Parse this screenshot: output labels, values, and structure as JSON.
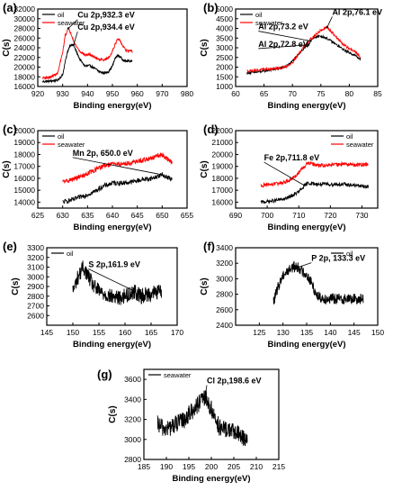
{
  "colors": {
    "oil": "#000000",
    "seawater": "#ff0000",
    "axis": "#000000"
  },
  "chart_data": [
    {
      "id": "a",
      "panel_label": "(a)",
      "type": "line",
      "xlabel": "Binding energy(eV)",
      "ylabel": "C(s)",
      "xlim": [
        920,
        980
      ],
      "ylim": [
        16000,
        32000
      ],
      "xticks": [
        920,
        930,
        940,
        950,
        960,
        970,
        980
      ],
      "yticks": [
        16000,
        18000,
        20000,
        22000,
        24000,
        26000,
        28000,
        30000,
        32000
      ],
      "legend": [
        "oil",
        "seawater"
      ],
      "legend_position": "top-left",
      "series": [
        {
          "name": "oil",
          "color": "#000000",
          "noise": 250,
          "x": [
            922,
            925,
            928,
            930,
            931,
            932,
            933,
            934.4,
            935.5,
            937,
            939,
            941,
            943,
            945,
            947,
            948.5,
            950,
            951,
            952,
            953,
            954,
            955,
            956,
            958
          ],
          "y": [
            17000,
            17100,
            17300,
            18400,
            21000,
            23200,
            24600,
            24500,
            23200,
            21500,
            20200,
            20300,
            19700,
            19000,
            18800,
            19100,
            20200,
            21700,
            22400,
            22200,
            21600,
            21300,
            21200,
            21300
          ]
        },
        {
          "name": "seawater",
          "color": "#ff0000",
          "noise": 250,
          "x": [
            922,
            925,
            928,
            930,
            931,
            932.3,
            933.5,
            935,
            937,
            939,
            941,
            943,
            945,
            947,
            949,
            950.5,
            952,
            953,
            954,
            955,
            956,
            957,
            958
          ],
          "y": [
            17800,
            17900,
            18700,
            23000,
            26500,
            28000,
            26800,
            24700,
            23200,
            22500,
            22600,
            22000,
            21600,
            21500,
            22200,
            24000,
            25700,
            25500,
            24600,
            23700,
            23300,
            23300,
            23200
          ]
        }
      ],
      "annotations": [
        {
          "text": "Cu 2p,932.3 eV",
          "x": 932.3,
          "y": 28000
        },
        {
          "text": "Cu 2p,934.4 eV",
          "x": 934.4,
          "y": 24600
        }
      ]
    },
    {
      "id": "b",
      "panel_label": "(b)",
      "type": "line",
      "xlabel": "Binding energy(eV)",
      "ylabel": "C(s)",
      "xlim": [
        60,
        85
      ],
      "ylim": [
        1000,
        5000
      ],
      "xticks": [
        60,
        65,
        70,
        75,
        80,
        85
      ],
      "yticks": [
        1000,
        1500,
        2000,
        2500,
        3000,
        3500,
        4000,
        4500,
        5000
      ],
      "legend": [
        "oil",
        "seawater"
      ],
      "legend_position": "top-left",
      "series": [
        {
          "name": "oil",
          "color": "#000000",
          "noise": 60,
          "x": [
            62,
            64,
            66,
            68,
            69,
            70,
            71,
            72,
            72.8,
            73.2,
            74,
            75,
            76,
            77,
            78,
            79,
            80,
            81,
            82
          ],
          "y": [
            1700,
            1750,
            1850,
            1950,
            2050,
            2300,
            2650,
            2950,
            3150,
            3350,
            3550,
            3600,
            3500,
            3300,
            3100,
            2900,
            2750,
            2600,
            2400
          ]
        },
        {
          "name": "seawater",
          "color": "#ff0000",
          "noise": 70,
          "x": [
            62,
            64,
            66,
            68,
            69,
            70,
            71,
            72,
            73,
            74,
            75,
            76.1,
            77,
            78,
            79,
            80,
            81,
            82
          ],
          "y": [
            1800,
            1850,
            1900,
            1950,
            2050,
            2250,
            2650,
            3050,
            3400,
            3650,
            3900,
            4050,
            3800,
            3450,
            3150,
            2950,
            2800,
            2500
          ]
        }
      ],
      "annotations": [
        {
          "text": "Al 2p,76.1 eV",
          "x": 76.1,
          "y": 4050
        },
        {
          "text": "Al 2p,73.2 eV",
          "x": 73.2,
          "y": 3350
        },
        {
          "text": "Al 2p,72.8 eV",
          "x": 72.8,
          "y": 3150
        }
      ]
    },
    {
      "id": "c",
      "panel_label": "(c)",
      "type": "line",
      "xlabel": "Binding energy(eV)",
      "ylabel": "C(s)",
      "xlim": [
        625,
        655
      ],
      "ylim": [
        13500,
        20000
      ],
      "xticks": [
        625,
        630,
        635,
        640,
        645,
        650,
        655
      ],
      "yticks": [
        14000,
        15000,
        16000,
        17000,
        18000,
        19000,
        20000
      ],
      "legend": [
        "oil",
        "seawater"
      ],
      "legend_position": "top-left",
      "series": [
        {
          "name": "oil",
          "color": "#000000",
          "noise": 200,
          "x": [
            630,
            632,
            634,
            636,
            638,
            640,
            642,
            644,
            646,
            648,
            650,
            652
          ],
          "y": [
            14000,
            14200,
            14500,
            14800,
            15300,
            15600,
            15600,
            15700,
            15900,
            16000,
            16300,
            15900
          ]
        },
        {
          "name": "seawater",
          "color": "#ff0000",
          "noise": 200,
          "x": [
            630,
            632,
            634,
            636,
            638,
            640,
            642,
            644,
            646,
            648,
            650,
            652
          ],
          "y": [
            15700,
            15900,
            16200,
            16600,
            17000,
            17200,
            17200,
            17300,
            17500,
            17700,
            18000,
            17300
          ]
        }
      ],
      "annotations": [
        {
          "text": "Mn 2p, 650.0 eV",
          "x": 650,
          "y": 16300
        }
      ]
    },
    {
      "id": "d",
      "panel_label": "(d)",
      "type": "line",
      "xlabel": "Binding energy(eV)",
      "ylabel": "C(s)",
      "xlim": [
        690,
        735
      ],
      "ylim": [
        15500,
        22000
      ],
      "xticks": [
        690,
        700,
        710,
        720,
        730
      ],
      "yticks": [
        16000,
        17000,
        18000,
        19000,
        20000,
        21000,
        22000
      ],
      "legend": [
        "oil",
        "seawater"
      ],
      "legend_position": "top-right",
      "series": [
        {
          "name": "oil",
          "color": "#000000",
          "noise": 150,
          "x": [
            698,
            702,
            706,
            709,
            711,
            711.8,
            713,
            716,
            720,
            724,
            728,
            732
          ],
          "y": [
            16000,
            16100,
            16300,
            16700,
            17100,
            17400,
            17600,
            17500,
            17500,
            17500,
            17400,
            17300
          ]
        },
        {
          "name": "seawater",
          "color": "#ff0000",
          "noise": 160,
          "x": [
            698,
            702,
            706,
            709,
            711,
            713,
            716,
            720,
            724,
            728,
            732
          ],
          "y": [
            17400,
            17500,
            17700,
            18200,
            18800,
            19300,
            19100,
            19100,
            19200,
            19100,
            19200
          ]
        }
      ],
      "annotations": [
        {
          "text": "Fe 2p,711.8 eV",
          "x": 711.8,
          "y": 17400
        }
      ]
    },
    {
      "id": "e",
      "panel_label": "(e)",
      "type": "line",
      "xlabel": "Binding energy(eV)",
      "ylabel": "C(s)",
      "xlim": [
        145,
        170
      ],
      "ylim": [
        2500,
        3300
      ],
      "xticks": [
        145,
        150,
        155,
        160,
        165,
        170
      ],
      "yticks": [
        2600,
        2700,
        2800,
        2900,
        3000,
        3100,
        3200,
        3300
      ],
      "legend": [
        "oil"
      ],
      "legend_position": "top-left",
      "series": [
        {
          "name": "oil",
          "color": "#000000",
          "noise": 80,
          "x": [
            150,
            151,
            152,
            153,
            154,
            155,
            157,
            159,
            161.9,
            163,
            165,
            167
          ],
          "y": [
            2850,
            3000,
            3100,
            3000,
            2900,
            2850,
            2800,
            2780,
            2850,
            2800,
            2830,
            2850
          ]
        }
      ],
      "annotations": [
        {
          "text": "S 2p,161.9 eV",
          "x": 161.9,
          "y": 2850
        }
      ]
    },
    {
      "id": "f",
      "panel_label": "(f)",
      "type": "line",
      "xlabel": "Binding energy(eV)",
      "ylabel": "C(s)",
      "xlim": [
        120,
        150
      ],
      "ylim": [
        2400,
        3400
      ],
      "xticks": [
        125,
        130,
        135,
        140,
        145,
        150
      ],
      "yticks": [
        2400,
        2600,
        2800,
        3000,
        3200,
        3400
      ],
      "legend": [
        "oil"
      ],
      "legend_position": "top-right",
      "series": [
        {
          "name": "oil",
          "color": "#000000",
          "noise": 70,
          "x": [
            128,
            129,
            130,
            131,
            132,
            133.3,
            134,
            135,
            136,
            137,
            138,
            140,
            143,
            145,
            147
          ],
          "y": [
            2700,
            2900,
            3050,
            3100,
            3150,
            3150,
            3100,
            3050,
            2950,
            2800,
            2750,
            2740,
            2740,
            2740,
            2740
          ]
        }
      ],
      "annotations": [
        {
          "text": "P 2p, 133.3 eV",
          "x": 133.3,
          "y": 3150
        }
      ]
    },
    {
      "id": "g",
      "panel_label": "(g)",
      "type": "line",
      "xlabel": "Binding energy(eV)",
      "ylabel": "C(s)",
      "xlim": [
        185,
        215
      ],
      "ylim": [
        2800,
        3700
      ],
      "xticks": [
        185,
        190,
        195,
        200,
        205,
        210,
        215
      ],
      "yticks": [
        2800,
        3000,
        3200,
        3400,
        3600
      ],
      "legend": [
        "seawater"
      ],
      "legend_position": "top-left",
      "series": [
        {
          "name": "seawater",
          "color": "#000000",
          "noise": 90,
          "x": [
            188,
            190,
            192,
            194,
            196,
            198.6,
            200,
            202,
            204,
            206,
            208
          ],
          "y": [
            3150,
            3100,
            3150,
            3200,
            3300,
            3420,
            3300,
            3100,
            3100,
            3050,
            3000
          ]
        }
      ],
      "annotations": [
        {
          "text": "Cl 2p,198.6 eV",
          "x": 198.6,
          "y": 3420
        }
      ]
    }
  ]
}
